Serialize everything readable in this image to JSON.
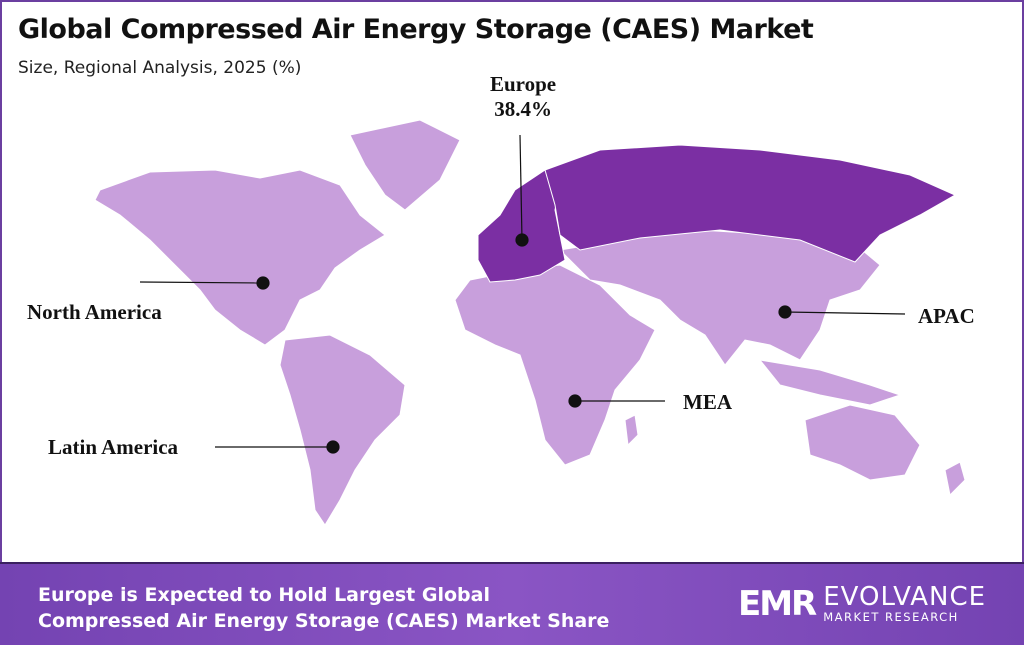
{
  "header": {
    "title": "Global Compressed Air Energy Storage (CAES) Market",
    "subtitle": "Size, Regional Analysis, 2025 (%)"
  },
  "colors": {
    "region_light": "#c89fdc",
    "region_highlight": "#7b2fa3",
    "footer": "#7a47b8",
    "frame": "#6b3fa0"
  },
  "regions": [
    {
      "name": "North America"
    },
    {
      "name": "Latin America"
    },
    {
      "name": "Europe",
      "share": "38.4%",
      "highlighted": true
    },
    {
      "name": "APAC"
    },
    {
      "name": "MEA"
    }
  ],
  "footer": {
    "line1": "Europe is Expected to Hold Largest Global",
    "line2": "Compressed Air Energy Storage (CAES) Market Share"
  },
  "logo": {
    "mark": "EMR",
    "name": "EVOLVANCE",
    "tagline": "MARKET RESEARCH"
  }
}
